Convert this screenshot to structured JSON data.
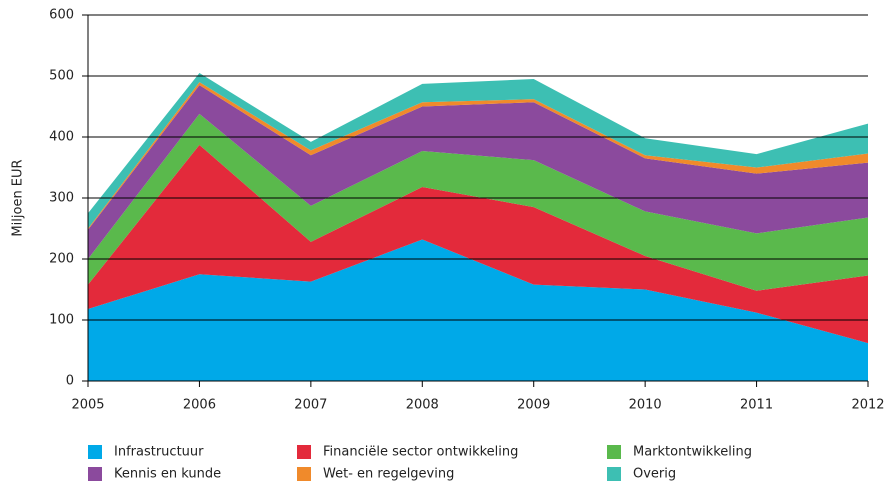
{
  "chart_data": {
    "type": "stacked_area",
    "y_label": "Miljoen EUR",
    "categories": [
      "2005",
      "2006",
      "2007",
      "2008",
      "2009",
      "2010",
      "2011",
      "2012"
    ],
    "series": [
      {
        "name": "Infrastructuur",
        "color": "#00a9e8",
        "values": [
          118,
          175,
          163,
          232,
          158,
          150,
          112,
          62
        ]
      },
      {
        "name": "Financiële sector ontwikkeling",
        "color": "#e32a3b",
        "values": [
          40,
          212,
          65,
          86,
          127,
          55,
          36,
          111
        ]
      },
      {
        "name": "Marktontwikkeling",
        "color": "#5ab94c",
        "values": [
          42,
          51,
          59,
          59,
          77,
          73,
          94,
          95
        ]
      },
      {
        "name": "Kennis en kunde",
        "color": "#8b4a9d",
        "values": [
          48,
          47,
          83,
          73,
          95,
          87,
          98,
          90
        ]
      },
      {
        "name": "Wet- en regelgeving",
        "color": "#f08a2b",
        "values": [
          2,
          5,
          8,
          7,
          5,
          5,
          10,
          15
        ]
      },
      {
        "name": "Overig",
        "color": "#3dbfb3",
        "values": [
          25,
          15,
          14,
          30,
          33,
          28,
          22,
          49
        ]
      }
    ],
    "ylim": [
      0,
      600
    ],
    "yticks": [
      0,
      100,
      200,
      300,
      400,
      500,
      600
    ],
    "grid": true
  }
}
